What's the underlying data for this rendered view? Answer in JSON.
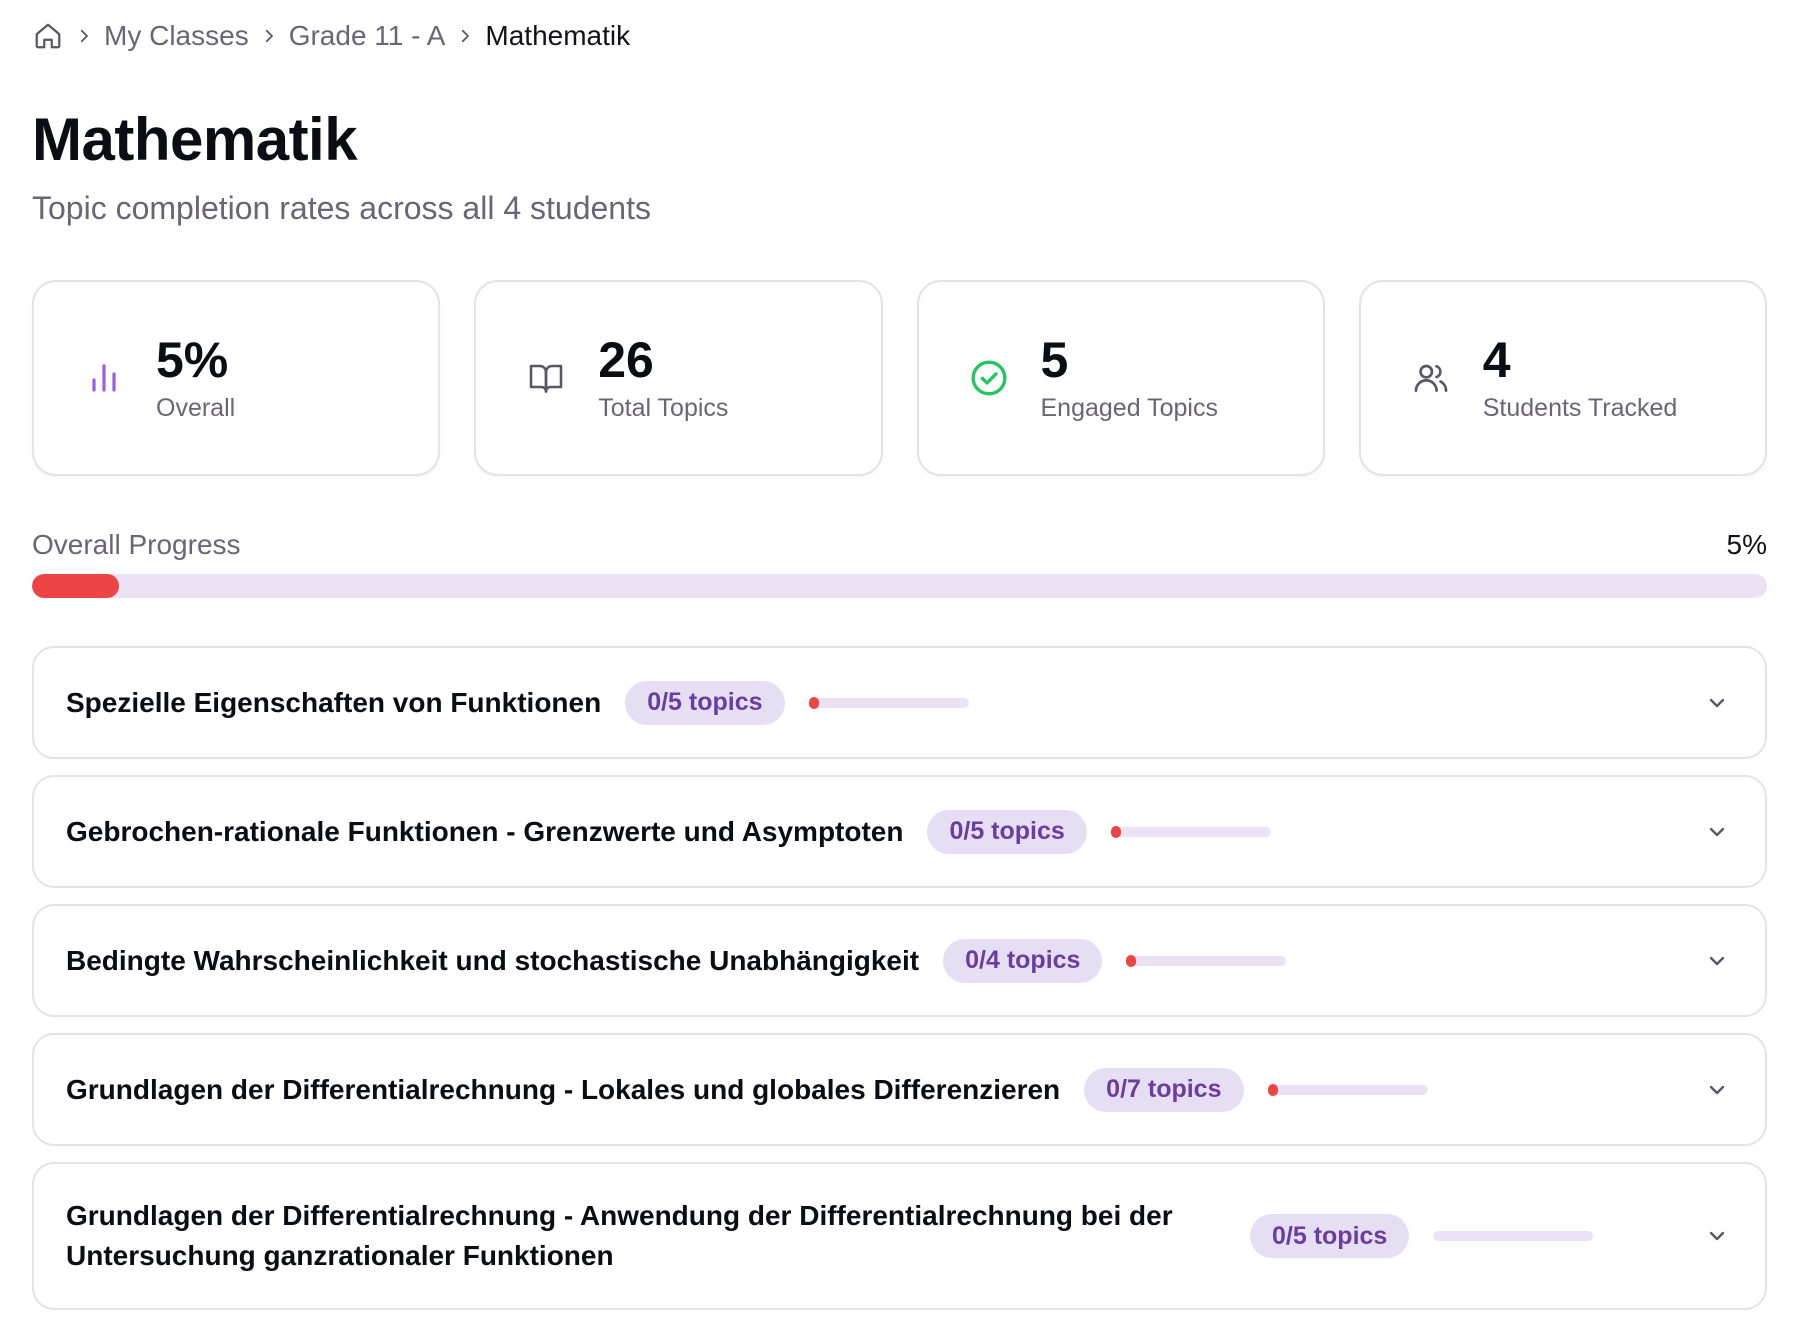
{
  "breadcrumb": {
    "home_icon": "home-icon",
    "items": [
      "My Classes",
      "Grade 11 - A",
      "Mathematik"
    ]
  },
  "title": "Mathematik",
  "subtitle": "Topic completion rates across all 4 students",
  "stats": [
    {
      "icon": "bar-chart-icon",
      "value": "5%",
      "label": "Overall",
      "color": "#9b5de5"
    },
    {
      "icon": "book-open-icon",
      "value": "26",
      "label": "Total Topics",
      "color": "#5b5568"
    },
    {
      "icon": "check-circle-icon",
      "value": "5",
      "label": "Engaged Topics",
      "color": "#22c55e"
    },
    {
      "icon": "users-icon",
      "value": "4",
      "label": "Students Tracked",
      "color": "#5b5568"
    }
  ],
  "overall_progress": {
    "label": "Overall Progress",
    "percent_text": "5%",
    "percent": 5
  },
  "subjects": [
    {
      "title": "Spezielle Eigenschaften von Funktionen",
      "badge": "0/5 topics",
      "progress": 0,
      "show_dot": true
    },
    {
      "title": "Gebrochen-rationale Funktionen - Grenzwerte und Asymptoten",
      "badge": "0/5 topics",
      "progress": 0,
      "show_dot": true
    },
    {
      "title": "Bedingte Wahrscheinlichkeit und stochastische Unabhängigkeit",
      "badge": "0/4 topics",
      "progress": 0,
      "show_dot": true
    },
    {
      "title": "Grundlagen der Differentialrechnung - Lokales und globales Differenzieren",
      "badge": "0/7 topics",
      "progress": 0,
      "show_dot": true
    },
    {
      "title": "Grundlagen der Differentialrechnung - Anwendung der Differentialrechnung bei der Untersuchung ganzrationaler Funktionen",
      "badge": "0/5 topics",
      "progress": 0,
      "show_dot": false
    }
  ],
  "colors": {
    "accent_red": "#ef4444",
    "track": "#ebe3f5",
    "badge_bg": "#e6def2",
    "badge_text": "#6a3ea1",
    "muted_text": "#6b6478"
  }
}
